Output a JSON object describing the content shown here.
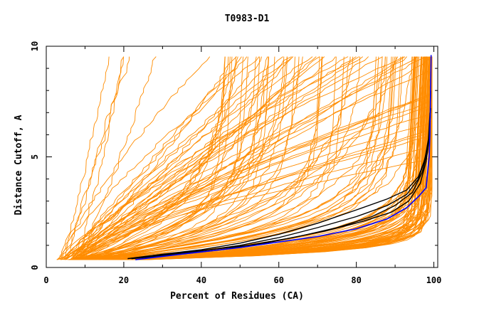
{
  "chart_data": {
    "type": "line",
    "title": "T0983-D1",
    "xlabel": "Percent of Residues (CA)",
    "ylabel": "Distance Cutoff, A",
    "xlim": [
      0,
      101
    ],
    "ylim": [
      0,
      10
    ],
    "x_ticks": [
      0,
      20,
      40,
      60,
      80,
      100
    ],
    "y_ticks": [
      0,
      5,
      10
    ],
    "x_tick_labels": [
      "0",
      "20",
      "40",
      "60",
      "80",
      "100"
    ],
    "y_tick_labels": [
      "0",
      "5",
      "10"
    ],
    "grid": false,
    "legend": "none",
    "colors": {
      "background_models": "#ff8c00",
      "highlight_models": "#000000",
      "target_model": "#0000ff"
    },
    "series": [
      {
        "group": "highlight",
        "color": "#000000",
        "points": [
          [
            21,
            0.4
          ],
          [
            30,
            0.6
          ],
          [
            40,
            0.8
          ],
          [
            50,
            1.1
          ],
          [
            60,
            1.5
          ],
          [
            70,
            2.0
          ],
          [
            80,
            2.6
          ],
          [
            88,
            3.1
          ],
          [
            93,
            3.5
          ],
          [
            96,
            4.1
          ],
          [
            97.5,
            4.8
          ],
          [
            98.5,
            5.5
          ],
          [
            99,
            6.5
          ],
          [
            99.2,
            8.0
          ]
        ]
      },
      {
        "group": "highlight",
        "color": "#000000",
        "points": [
          [
            21,
            0.4
          ],
          [
            30,
            0.55
          ],
          [
            40,
            0.75
          ],
          [
            50,
            1.0
          ],
          [
            60,
            1.35
          ],
          [
            70,
            1.8
          ],
          [
            80,
            2.3
          ],
          [
            88,
            2.8
          ],
          [
            93,
            3.3
          ],
          [
            96,
            4.0
          ],
          [
            97.7,
            4.9
          ],
          [
            98.6,
            5.8
          ],
          [
            99,
            7.0
          ]
        ]
      },
      {
        "group": "highlight",
        "color": "#000000",
        "points": [
          [
            22,
            0.4
          ],
          [
            32,
            0.6
          ],
          [
            42,
            0.8
          ],
          [
            52,
            1.0
          ],
          [
            62,
            1.3
          ],
          [
            72,
            1.65
          ],
          [
            82,
            2.1
          ],
          [
            89,
            2.5
          ],
          [
            93.5,
            3.0
          ],
          [
            96.5,
            3.8
          ],
          [
            98,
            4.8
          ],
          [
            98.8,
            5.8
          ],
          [
            99.2,
            7.2
          ]
        ]
      },
      {
        "group": "highlight",
        "color": "#000000",
        "points": [
          [
            22,
            0.4
          ],
          [
            32,
            0.55
          ],
          [
            45,
            0.8
          ],
          [
            55,
            1.05
          ],
          [
            65,
            1.4
          ],
          [
            75,
            1.8
          ],
          [
            84,
            2.3
          ],
          [
            90,
            2.8
          ],
          [
            94.5,
            3.4
          ],
          [
            97,
            4.3
          ],
          [
            98.4,
            5.3
          ],
          [
            99,
            6.5
          ]
        ]
      },
      {
        "group": "target",
        "color": "#0000ff",
        "points": [
          [
            23,
            0.35
          ],
          [
            30,
            0.5
          ],
          [
            40,
            0.7
          ],
          [
            50,
            0.9
          ],
          [
            60,
            1.15
          ],
          [
            70,
            1.4
          ],
          [
            80,
            1.75
          ],
          [
            88,
            2.2
          ],
          [
            93,
            2.7
          ],
          [
            96,
            3.2
          ],
          [
            98,
            3.6
          ],
          [
            98.5,
            4.5
          ],
          [
            98.8,
            5.0
          ],
          [
            99,
            6.0
          ],
          [
            99.1,
            7.5
          ],
          [
            99.2,
            8.5
          ],
          [
            99.3,
            9.6
          ]
        ]
      }
    ]
  }
}
